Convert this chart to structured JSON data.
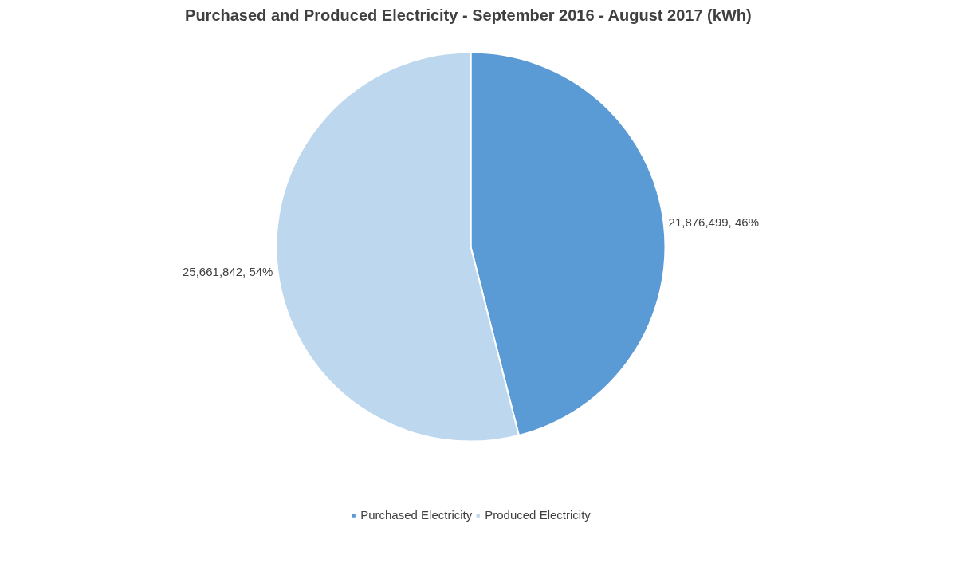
{
  "chart_data": {
    "type": "pie",
    "title": "Purchased and Produced Electricity - September 2016 - August 2017  (kWh)",
    "categories": [
      "Purchased Electricity",
      "Produced Electricity"
    ],
    "values": [
      21876499,
      25661842
    ],
    "colors": [
      "#5b9bd5",
      "#bdd7ee"
    ],
    "value_labels": [
      "21,876,499, 46%",
      "25,661,842, 54%"
    ],
    "legend": "bottom"
  }
}
